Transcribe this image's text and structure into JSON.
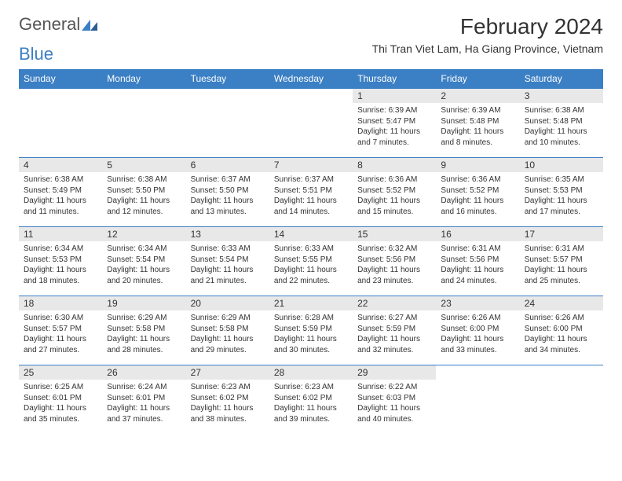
{
  "logo": {
    "text1": "General",
    "text2": "Blue"
  },
  "title": "February 2024",
  "location": "Thi Tran Viet Lam, Ha Giang Province, Vietnam",
  "colors": {
    "header_bg": "#3b7fc4",
    "header_fg": "#ffffff",
    "daynum_bg": "#e8e8e8",
    "border": "#3b7fc4",
    "text": "#333333"
  },
  "day_headers": [
    "Sunday",
    "Monday",
    "Tuesday",
    "Wednesday",
    "Thursday",
    "Friday",
    "Saturday"
  ],
  "weeks": [
    [
      {
        "blank": true
      },
      {
        "blank": true
      },
      {
        "blank": true
      },
      {
        "blank": true
      },
      {
        "n": "1",
        "sunrise": "6:39 AM",
        "sunset": "5:47 PM",
        "daylight": "11 hours and 7 minutes."
      },
      {
        "n": "2",
        "sunrise": "6:39 AM",
        "sunset": "5:48 PM",
        "daylight": "11 hours and 8 minutes."
      },
      {
        "n": "3",
        "sunrise": "6:38 AM",
        "sunset": "5:48 PM",
        "daylight": "11 hours and 10 minutes."
      }
    ],
    [
      {
        "n": "4",
        "sunrise": "6:38 AM",
        "sunset": "5:49 PM",
        "daylight": "11 hours and 11 minutes."
      },
      {
        "n": "5",
        "sunrise": "6:38 AM",
        "sunset": "5:50 PM",
        "daylight": "11 hours and 12 minutes."
      },
      {
        "n": "6",
        "sunrise": "6:37 AM",
        "sunset": "5:50 PM",
        "daylight": "11 hours and 13 minutes."
      },
      {
        "n": "7",
        "sunrise": "6:37 AM",
        "sunset": "5:51 PM",
        "daylight": "11 hours and 14 minutes."
      },
      {
        "n": "8",
        "sunrise": "6:36 AM",
        "sunset": "5:52 PM",
        "daylight": "11 hours and 15 minutes."
      },
      {
        "n": "9",
        "sunrise": "6:36 AM",
        "sunset": "5:52 PM",
        "daylight": "11 hours and 16 minutes."
      },
      {
        "n": "10",
        "sunrise": "6:35 AM",
        "sunset": "5:53 PM",
        "daylight": "11 hours and 17 minutes."
      }
    ],
    [
      {
        "n": "11",
        "sunrise": "6:34 AM",
        "sunset": "5:53 PM",
        "daylight": "11 hours and 18 minutes."
      },
      {
        "n": "12",
        "sunrise": "6:34 AM",
        "sunset": "5:54 PM",
        "daylight": "11 hours and 20 minutes."
      },
      {
        "n": "13",
        "sunrise": "6:33 AM",
        "sunset": "5:54 PM",
        "daylight": "11 hours and 21 minutes."
      },
      {
        "n": "14",
        "sunrise": "6:33 AM",
        "sunset": "5:55 PM",
        "daylight": "11 hours and 22 minutes."
      },
      {
        "n": "15",
        "sunrise": "6:32 AM",
        "sunset": "5:56 PM",
        "daylight": "11 hours and 23 minutes."
      },
      {
        "n": "16",
        "sunrise": "6:31 AM",
        "sunset": "5:56 PM",
        "daylight": "11 hours and 24 minutes."
      },
      {
        "n": "17",
        "sunrise": "6:31 AM",
        "sunset": "5:57 PM",
        "daylight": "11 hours and 25 minutes."
      }
    ],
    [
      {
        "n": "18",
        "sunrise": "6:30 AM",
        "sunset": "5:57 PM",
        "daylight": "11 hours and 27 minutes."
      },
      {
        "n": "19",
        "sunrise": "6:29 AM",
        "sunset": "5:58 PM",
        "daylight": "11 hours and 28 minutes."
      },
      {
        "n": "20",
        "sunrise": "6:29 AM",
        "sunset": "5:58 PM",
        "daylight": "11 hours and 29 minutes."
      },
      {
        "n": "21",
        "sunrise": "6:28 AM",
        "sunset": "5:59 PM",
        "daylight": "11 hours and 30 minutes."
      },
      {
        "n": "22",
        "sunrise": "6:27 AM",
        "sunset": "5:59 PM",
        "daylight": "11 hours and 32 minutes."
      },
      {
        "n": "23",
        "sunrise": "6:26 AM",
        "sunset": "6:00 PM",
        "daylight": "11 hours and 33 minutes."
      },
      {
        "n": "24",
        "sunrise": "6:26 AM",
        "sunset": "6:00 PM",
        "daylight": "11 hours and 34 minutes."
      }
    ],
    [
      {
        "n": "25",
        "sunrise": "6:25 AM",
        "sunset": "6:01 PM",
        "daylight": "11 hours and 35 minutes."
      },
      {
        "n": "26",
        "sunrise": "6:24 AM",
        "sunset": "6:01 PM",
        "daylight": "11 hours and 37 minutes."
      },
      {
        "n": "27",
        "sunrise": "6:23 AM",
        "sunset": "6:02 PM",
        "daylight": "11 hours and 38 minutes."
      },
      {
        "n": "28",
        "sunrise": "6:23 AM",
        "sunset": "6:02 PM",
        "daylight": "11 hours and 39 minutes."
      },
      {
        "n": "29",
        "sunrise": "6:22 AM",
        "sunset": "6:03 PM",
        "daylight": "11 hours and 40 minutes."
      },
      {
        "blank": true
      },
      {
        "blank": true
      }
    ]
  ],
  "labels": {
    "sunrise": "Sunrise: ",
    "sunset": "Sunset: ",
    "daylight": "Daylight: "
  }
}
